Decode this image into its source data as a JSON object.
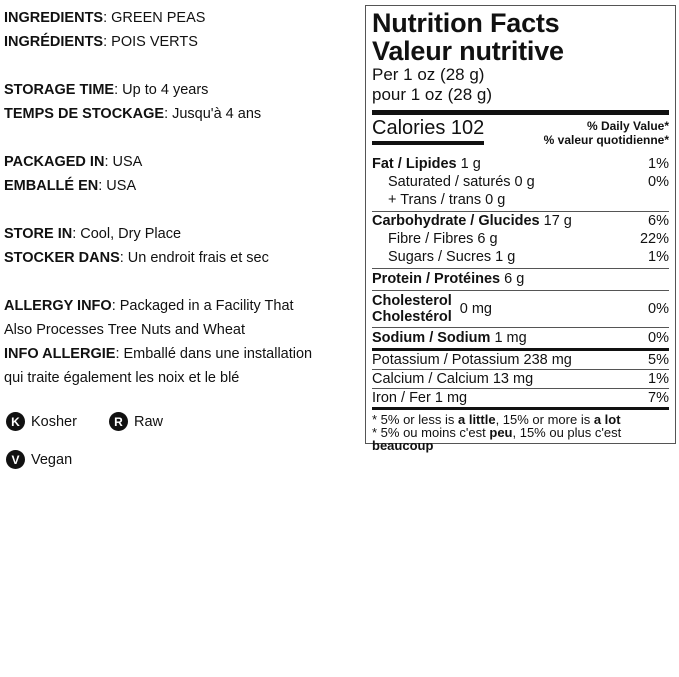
{
  "left": {
    "lines": [
      {
        "b": "INGREDIENTS",
        "t": ": GREEN PEAS"
      },
      {
        "b": "INGRÉDIENTS",
        "t": ": POIS VERTS"
      },
      null,
      {
        "b": "STORAGE TIME",
        "t": ": Up to 4 years"
      },
      {
        "b": "TEMPS DE STOCKAGE",
        "t": ": Jusqu'à 4 ans"
      },
      null,
      {
        "b": "PACKAGED IN",
        "t": ": USA"
      },
      {
        "b": "EMBALLÉ EN",
        "t": ": USA"
      },
      null,
      {
        "b": "STORE IN",
        "t": ": Cool, Dry Place"
      },
      {
        "b": "STOCKER DANS",
        "t": ": Un endroit frais et sec"
      },
      null,
      {
        "b": "ALLERGY INFO",
        "t": ": Packaged in a Facility That"
      },
      {
        "b": "",
        "t": "Also Processes Tree Nuts and Wheat"
      },
      {
        "b": "INFO ALLERGIE",
        "t": ": Emballé dans une installation"
      },
      {
        "b": "",
        "t": "qui traite également les noix et le blé"
      }
    ],
    "badges": [
      {
        "letter": "K",
        "label": "Kosher"
      },
      {
        "letter": "R",
        "label": "Raw"
      },
      {
        "letter": "V",
        "label": "Vegan"
      }
    ]
  },
  "label": {
    "title_en": "Nutrition Facts",
    "title_fr": "Valeur nutritive",
    "per_en": "Per 1 oz (28 g)",
    "per_fr": "pour 1 oz (28 g)",
    "calories": "Calories 102",
    "dv_en": "% Daily Value*",
    "dv_fr": "% valeur quotidienne*",
    "fat": {
      "b": "Fat / Lipides",
      "v": " 1 g",
      "p": "1%"
    },
    "sat": {
      "v": "Saturated / saturés 0 g",
      "p": "0%"
    },
    "trans": {
      "v": "+ Trans / trans 0 g"
    },
    "carb": {
      "b": "Carbohydrate / Glucides",
      "v": " 17 g",
      "p": "6%"
    },
    "fibre": {
      "v": "Fibre / Fibres 6 g",
      "p": "22%"
    },
    "sugars": {
      "v": "Sugars / Sucres 1 g",
      "p": "1%"
    },
    "protein": {
      "b": "Protein / Protéines",
      "v": " 6 g"
    },
    "chol": {
      "b1": "Cholesterol",
      "b2": "Cholestérol",
      "v": "0 mg",
      "p": "0%"
    },
    "sodium": {
      "b": "Sodium / Sodium",
      "v": " 1 mg",
      "p": "0%"
    },
    "potassium": {
      "v": "Potassium / Potassium 238 mg",
      "p": "5%"
    },
    "calcium": {
      "v": "Calcium / Calcium 13 mg",
      "p": "1%"
    },
    "iron": {
      "v": "Iron / Fer 1 mg",
      "p": "7%"
    },
    "foot1": [
      "* 5% or less is ",
      "a little",
      ", 15% or more is ",
      "a lot"
    ],
    "foot2": [
      "* 5% ou moins c'est ",
      "peu",
      ", 15% ou plus c'est ",
      "beaucoup"
    ]
  }
}
